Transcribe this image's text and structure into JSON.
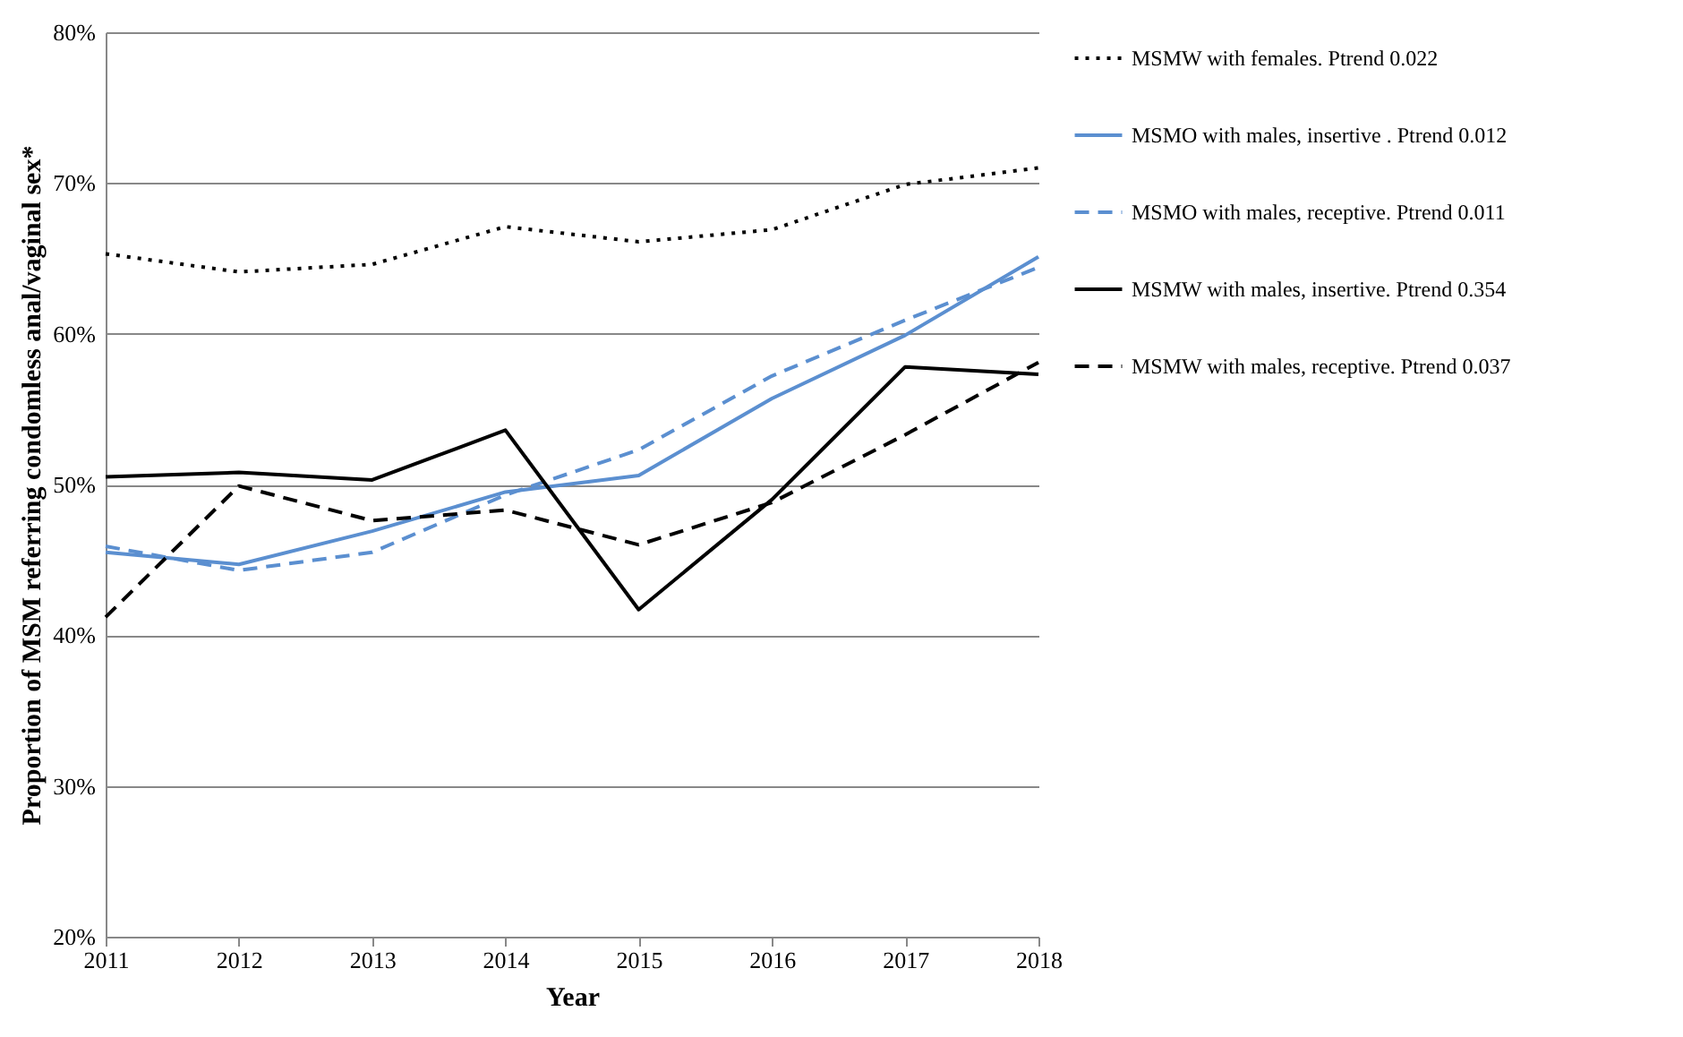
{
  "chart_data": {
    "type": "line",
    "xlabel": "Year",
    "ylabel": "Proportion of MSM referring condomless anal/vaginal sex*",
    "x": [
      2011,
      2012,
      2013,
      2014,
      2015,
      2016,
      2017,
      2018
    ],
    "series": [
      {
        "name": "MSMW with females. Ptrend 0.022",
        "color": "#000000",
        "line_style": "dotted",
        "values": [
          65.3,
          64.1,
          64.6,
          67.1,
          66.1,
          66.9,
          69.9,
          71.0
        ]
      },
      {
        "name": "MSMO with males, insertive . Ptrend 0.012",
        "color": "#5b8fd0",
        "line_style": "solid",
        "values": [
          45.5,
          44.7,
          46.9,
          49.5,
          50.6,
          55.7,
          59.9,
          65.1
        ]
      },
      {
        "name": "MSMO with males, receptive. Ptrend 0.011",
        "color": "#5b8fd0",
        "line_style": "dashed",
        "values": [
          45.9,
          44.3,
          45.5,
          49.3,
          52.3,
          57.2,
          60.9,
          64.4
        ]
      },
      {
        "name": "MSMW with males, insertive. Ptrend 0.354",
        "color": "#000000",
        "line_style": "solid",
        "values": [
          50.5,
          50.8,
          50.3,
          53.6,
          41.7,
          49.0,
          57.8,
          57.3
        ]
      },
      {
        "name": "MSMW with males, receptive. Ptrend 0.037",
        "color": "#000000",
        "line_style": "dashed",
        "values": [
          41.2,
          49.9,
          47.6,
          48.3,
          46.0,
          48.8,
          53.3,
          58.1
        ]
      }
    ],
    "xlim": [
      2011,
      2018
    ],
    "xticks": [
      2011,
      2012,
      2013,
      2014,
      2015,
      2016,
      2017,
      2018
    ],
    "ylim": [
      20,
      80
    ],
    "yticks": [
      {
        "value": 20,
        "label": "20%"
      },
      {
        "value": 30,
        "label": "30%"
      },
      {
        "value": 40,
        "label": "40%"
      },
      {
        "value": 50,
        "label": "50%"
      },
      {
        "value": 60,
        "label": "60%"
      },
      {
        "value": 70,
        "label": "70%"
      },
      {
        "value": 80,
        "label": "80%"
      }
    ],
    "grid": "y",
    "legend": "right",
    "marker": "none"
  }
}
